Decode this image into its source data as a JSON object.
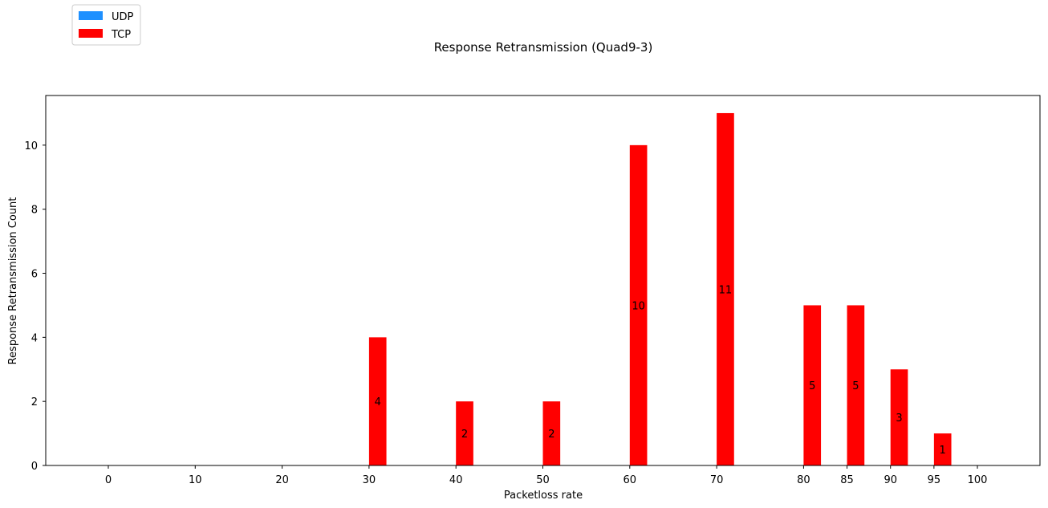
{
  "chart_data": {
    "type": "bar",
    "title": "Response Retransmission (Quad9-3)",
    "xlabel": "Packetloss rate",
    "ylabel": "Response Retransmission Count",
    "categories": [
      "0",
      "10",
      "20",
      "30",
      "40",
      "50",
      "60",
      "70",
      "80",
      "85",
      "90",
      "95",
      "100"
    ],
    "x": [
      0,
      10,
      20,
      30,
      40,
      50,
      60,
      70,
      80,
      85,
      90,
      95,
      100
    ],
    "series": [
      {
        "name": "UDP",
        "color": "#1e90ff",
        "values": [
          0,
          0,
          0,
          0,
          0,
          0,
          0,
          0,
          0,
          0,
          0,
          0,
          0
        ]
      },
      {
        "name": "TCP",
        "color": "#ff0000",
        "values": [
          0,
          0,
          0,
          4,
          2,
          2,
          10,
          11,
          5,
          5,
          3,
          1,
          0
        ]
      }
    ],
    "xlim": [
      -7.2,
      107.2
    ],
    "ylim": [
      0,
      11.55
    ],
    "yticks": [
      0,
      2,
      4,
      6,
      8,
      10
    ],
    "grid": false,
    "legend": "top-left",
    "data_labels": "TCP values > 0"
  }
}
